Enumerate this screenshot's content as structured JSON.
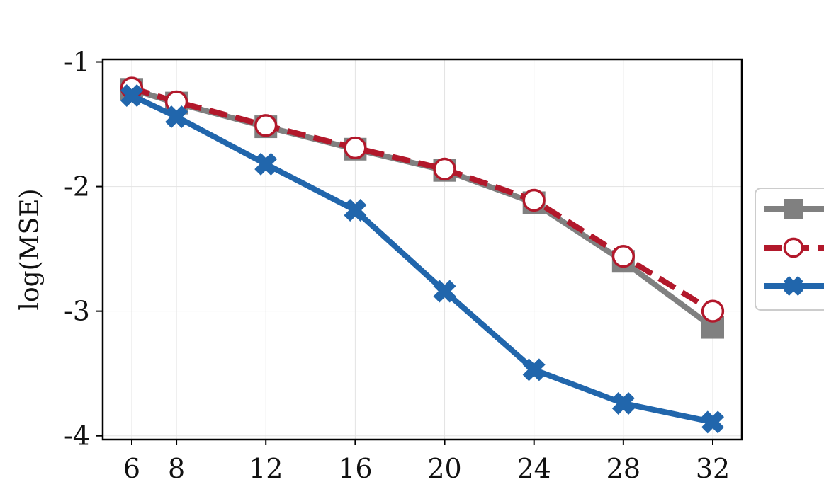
{
  "chart_data": {
    "type": "line",
    "title": "",
    "xlabel": "",
    "ylabel": "log(MSE)",
    "x": [
      6,
      8,
      12,
      16,
      20,
      24,
      28,
      32
    ],
    "x_ticks": [
      6,
      8,
      12,
      16,
      20,
      24,
      28,
      32
    ],
    "y_ticks": [
      -1,
      -2,
      -3,
      -4
    ],
    "xlim": [
      4.7,
      33.3
    ],
    "ylim": [
      -4.03,
      -0.98
    ],
    "grid": true,
    "legend": "right",
    "series": [
      {
        "values": [
          -1.22,
          -1.33,
          -1.52,
          -1.7,
          -1.87,
          -2.13,
          -2.6,
          -3.13
        ],
        "color": "#808080",
        "marker": "square",
        "linestyle": "solid"
      },
      {
        "values": [
          -1.21,
          -1.32,
          -1.51,
          -1.69,
          -1.86,
          -2.11,
          -2.56,
          -3.0
        ],
        "color": "#b2182b",
        "marker": "circle-open",
        "linestyle": "dashed"
      },
      {
        "values": [
          -1.27,
          -1.44,
          -1.82,
          -2.19,
          -2.84,
          -3.47,
          -3.74,
          -3.89
        ],
        "color": "#2166ac",
        "marker": "x-filled",
        "linestyle": "solid"
      }
    ]
  }
}
